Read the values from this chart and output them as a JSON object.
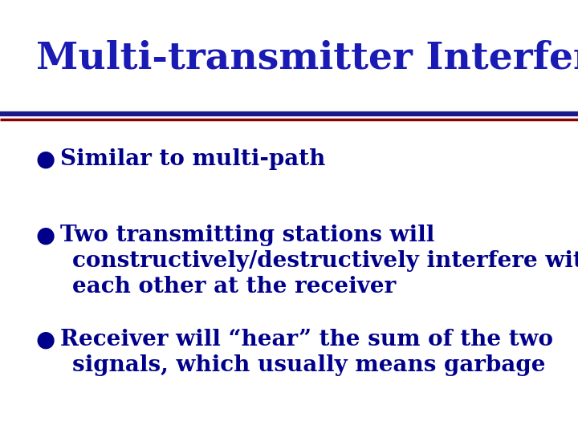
{
  "title": "Multi-transmitter Interference",
  "title_color": "#1a1ab5",
  "title_fontsize": 34,
  "background_color": "#ffffff",
  "line1_color": "#1a1a8c",
  "line2_color": "#8b0000",
  "bullet_color": "#00008b",
  "text_color": "#00008b",
  "bullet_char": "●",
  "text_fontsize": 20,
  "bullets": [
    {
      "lines": [
        "Similar to multi-path"
      ]
    },
    {
      "lines": [
        "Two transmitting stations will",
        "constructively/destructively interfere with",
        "each other at the receiver"
      ]
    },
    {
      "lines": [
        "Receiver will “hear” the sum of the two",
        "signals, which usually means garbage"
      ]
    }
  ]
}
